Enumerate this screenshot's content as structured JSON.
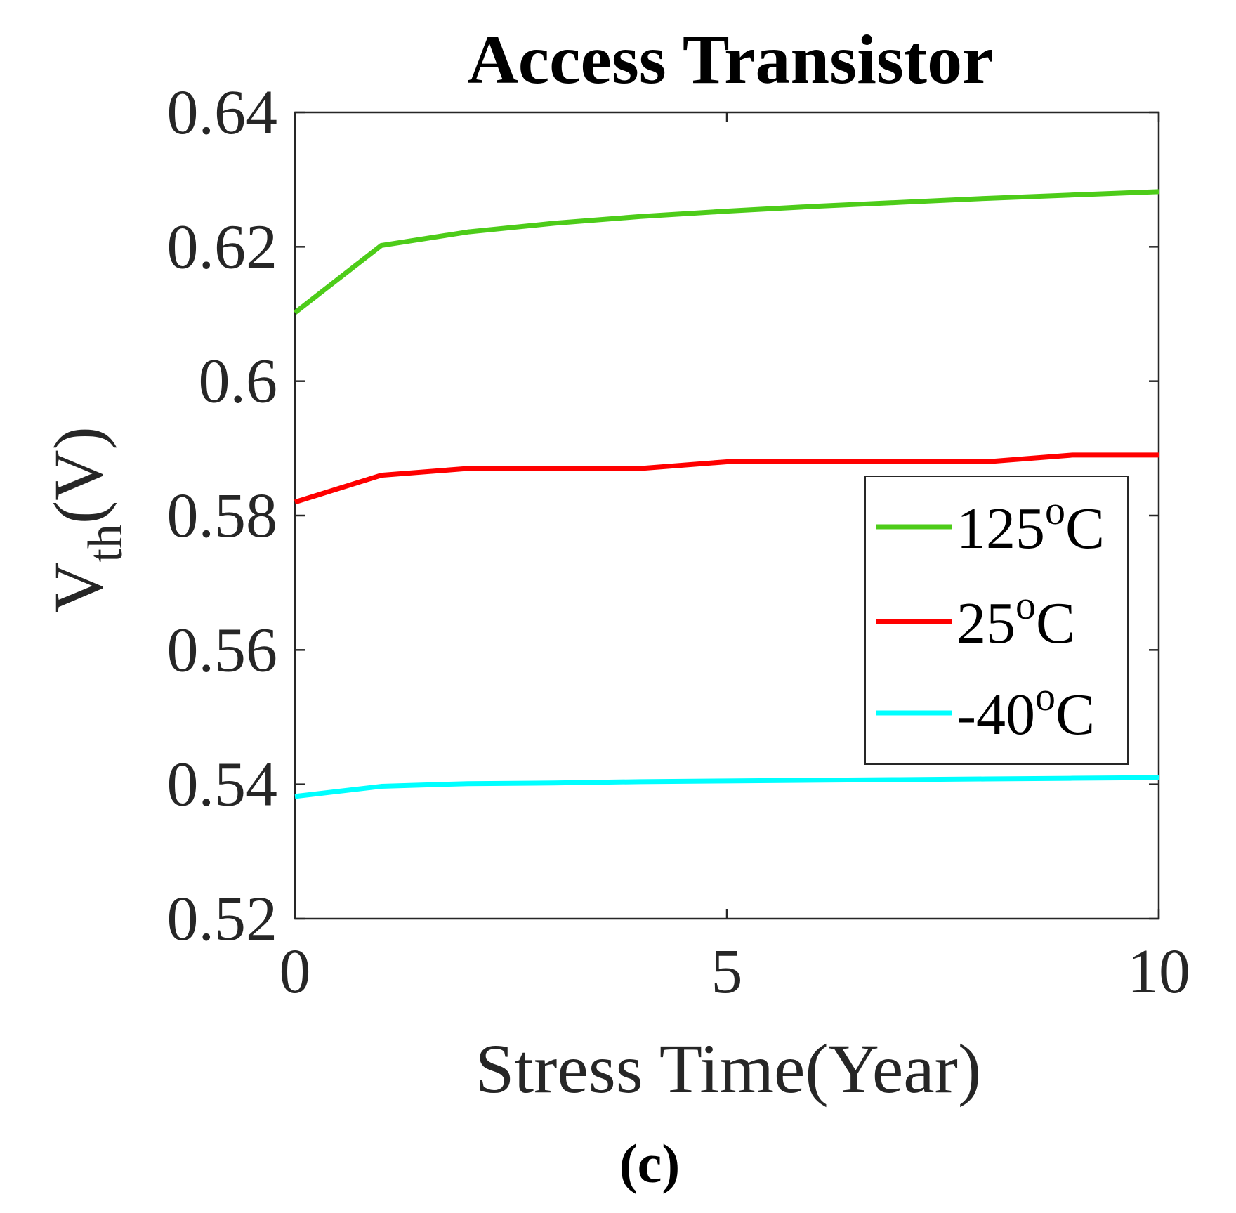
{
  "chart_data": {
    "type": "line",
    "title": "Access Transistor",
    "xlabel": "Stress Time(Year)",
    "ylabel": {
      "main": "V",
      "sub": "th",
      "unit": "(V)"
    },
    "panel_label": "(c)",
    "xlim": [
      0,
      10
    ],
    "ylim": [
      0.52,
      0.64
    ],
    "xticks": [
      0,
      5,
      10
    ],
    "xtick_labels": [
      "0",
      "5",
      "10"
    ],
    "yticks": [
      0.52,
      0.54,
      0.56,
      0.58,
      0.6,
      0.62,
      0.64
    ],
    "ytick_labels": [
      "0.52",
      "0.54",
      "0.56",
      "0.58",
      "0.6",
      "0.62",
      "0.64"
    ],
    "grid": false,
    "legend_position": "right",
    "x": [
      0,
      1,
      2,
      3,
      4,
      5,
      6,
      7,
      8,
      9,
      10
    ],
    "series": [
      {
        "name": "125°C",
        "legend": {
          "base": "125",
          "sup": "o",
          "unit": "C"
        },
        "color": "#4dcc19",
        "values": [
          0.6102,
          0.6202,
          0.6222,
          0.6235,
          0.6245,
          0.6253,
          0.626,
          0.6266,
          0.6272,
          0.6277,
          0.6282
        ]
      },
      {
        "name": "25°C",
        "legend": {
          "base": "25",
          "sup": "o",
          "unit": "C"
        },
        "color": "#ff0000",
        "values": [
          0.582,
          0.586,
          0.587,
          0.587,
          0.587,
          0.588,
          0.588,
          0.588,
          0.588,
          0.589,
          0.589
        ]
      },
      {
        "name": "-40°C",
        "legend": {
          "base": "-40",
          "sup": "o",
          "unit": "C"
        },
        "color": "#00ffff",
        "values": [
          0.5382,
          0.5397,
          0.5401,
          0.5402,
          0.5404,
          0.5405,
          0.5406,
          0.5407,
          0.5408,
          0.5409,
          0.541
        ]
      }
    ]
  }
}
